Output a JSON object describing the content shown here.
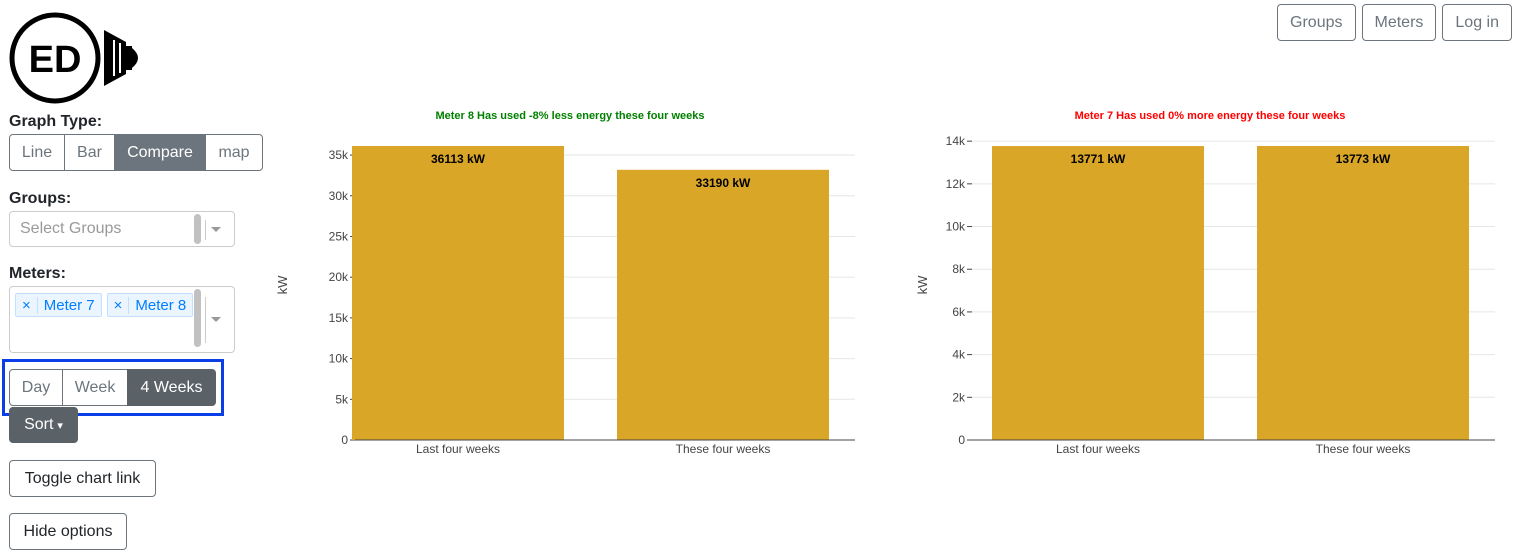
{
  "logo": {
    "text": "ED"
  },
  "nav": {
    "groups": "Groups",
    "meters": "Meters",
    "login": "Log in"
  },
  "graph_type": {
    "label": "Graph Type:",
    "options": [
      "Line",
      "Bar",
      "Compare",
      "map"
    ],
    "selected": "Compare"
  },
  "groups": {
    "label": "Groups:",
    "placeholder": "Select Groups"
  },
  "meters": {
    "label": "Meters:",
    "selected": [
      "Meter 7",
      "Meter 8"
    ],
    "remove_symbol": "×"
  },
  "timespan": {
    "options": [
      "Day",
      "Week",
      "4 Weeks"
    ],
    "selected": "4 Weeks"
  },
  "sort": {
    "label": "Sort",
    "caret": "▾"
  },
  "toggle_chart_link": "Toggle chart link",
  "hide_options": "Hide options",
  "colors": {
    "bar": "#DAA628",
    "green_title": "#008000",
    "red_title": "#ff0000",
    "highlight": "#0a3ee6"
  },
  "chart_data": [
    {
      "type": "bar",
      "title": "Meter 8 Has used -8% less energy these four weeks",
      "title_color": "#008000",
      "ylabel": "kW",
      "categories": [
        "Last four weeks",
        "These four weeks"
      ],
      "values": [
        36113,
        33190
      ],
      "data_labels": [
        "36113 kW",
        "33190 kW"
      ],
      "ylim": [
        0,
        36113
      ],
      "yticks": [
        0,
        5000,
        10000,
        15000,
        20000,
        25000,
        30000,
        35000
      ],
      "ytick_labels": [
        "0",
        "5k",
        "10k",
        "15k",
        "20k",
        "25k",
        "30k",
        "35k"
      ],
      "grid": true
    },
    {
      "type": "bar",
      "title": "Meter 7 Has used 0% more energy these four weeks",
      "title_color": "#ff0000",
      "ylabel": "kW",
      "categories": [
        "Last four weeks",
        "These four weeks"
      ],
      "values": [
        13771,
        13773
      ],
      "data_labels": [
        "13771 kW",
        "13773 kW"
      ],
      "ylim": [
        0,
        13773
      ],
      "yticks": [
        0,
        2000,
        4000,
        6000,
        8000,
        10000,
        12000,
        14000
      ],
      "ytick_labels": [
        "0",
        "2k",
        "4k",
        "6k",
        "8k",
        "10k",
        "12k",
        "14k"
      ],
      "grid": true
    }
  ]
}
